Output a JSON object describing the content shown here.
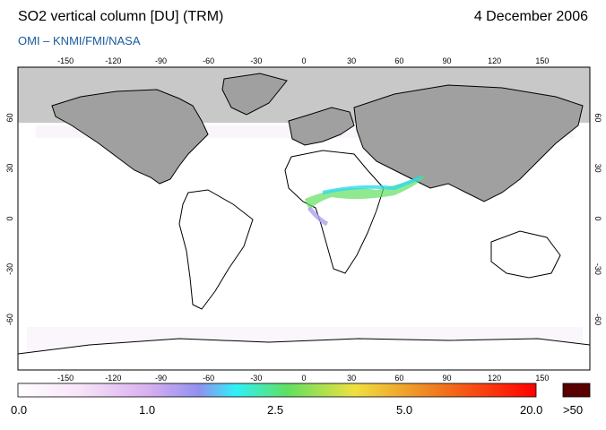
{
  "header": {
    "title": "SO2 vertical column [DU] (TRM)",
    "date": "4 December 2006",
    "credit": "OMI  –  KNMI/FMI/NASA"
  },
  "map": {
    "projection": "equirectangular",
    "lon_range": [
      -180,
      180
    ],
    "lat_range": [
      -90,
      90
    ],
    "lon_ticks": [
      "-150",
      "-120",
      "-90",
      "-60",
      "-30",
      "0",
      "30",
      "60",
      "90",
      "120",
      "150"
    ],
    "lat_ticks": [
      "60",
      "30",
      "0",
      "-30",
      "-60"
    ],
    "colors": {
      "no_data": "#c8c8c8",
      "land_night": "#a0a0a0",
      "coast": "#000000",
      "background": "#ffffff"
    }
  },
  "colorbar": {
    "labels": [
      "0.0",
      "1.0",
      "2.5",
      "5.0",
      "20.0"
    ],
    "overflow_label": ">50",
    "overflow_color": "#5a0000",
    "stops": [
      "#ffffff",
      "#f0d0f0",
      "#b0a0f0",
      "#3ee8f0",
      "#60e060",
      "#e8e030",
      "#f08020",
      "#ff0000"
    ]
  }
}
